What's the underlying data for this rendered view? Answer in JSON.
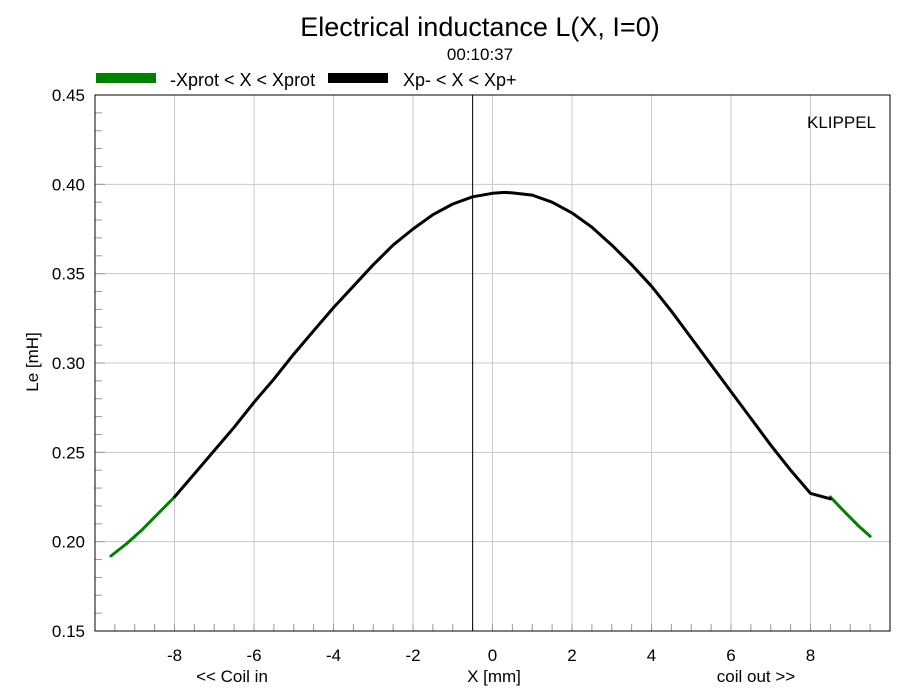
{
  "chart_data": {
    "type": "line",
    "title": "Electrical inductance L(X, I=0)",
    "subtitle": "00:10:37",
    "brand": "KLIPPEL",
    "xlabel": "X [mm]",
    "xlabel_left": "<< Coil in",
    "xlabel_right": "coil out >>",
    "ylabel": "Le [mH]",
    "xlim": [
      -10,
      10
    ],
    "ylim": [
      0.15,
      0.45
    ],
    "xticks": [
      -8,
      -6,
      -4,
      -2,
      0,
      2,
      4,
      6,
      8
    ],
    "xtick_labels": [
      "-8",
      "-6",
      "-4",
      "-2",
      "0",
      "2",
      "4",
      "6",
      "8"
    ],
    "yticks": [
      0.15,
      0.2,
      0.25,
      0.3,
      0.35,
      0.4,
      0.45
    ],
    "ytick_labels": [
      "0.15",
      "0.20",
      "0.25",
      "0.30",
      "0.35",
      "0.40",
      "0.45"
    ],
    "grid": true,
    "legend_position": "top-left",
    "vertical_marker_x": -0.5,
    "colors": {
      "green": "#008000",
      "black": "#000000",
      "grid": "#c8c8c8"
    },
    "series": [
      {
        "name": "-Xprot < X < Xprot",
        "color": "#008000",
        "segments": [
          {
            "x": [
              -9.6,
              -9.2,
              -8.8,
              -8.4,
              -8.0
            ],
            "y": [
              0.192,
              0.199,
              0.207,
              0.216,
              0.225
            ]
          },
          {
            "x": [
              8.5,
              8.8,
              9.2,
              9.5
            ],
            "y": [
              0.225,
              0.218,
              0.209,
              0.203
            ]
          }
        ]
      },
      {
        "name": "Xp- < X < Xp+",
        "color": "#000000",
        "segments": [
          {
            "x": [
              -8.0,
              -7.5,
              -7.0,
              -6.5,
              -6.0,
              -5.5,
              -5.0,
              -4.5,
              -4.0,
              -3.5,
              -3.0,
              -2.5,
              -2.0,
              -1.5,
              -1.0,
              -0.5,
              0.0,
              0.3,
              0.5,
              1.0,
              1.5,
              2.0,
              2.5,
              3.0,
              3.5,
              4.0,
              4.5,
              5.0,
              5.5,
              6.0,
              6.5,
              7.0,
              7.5,
              8.0,
              8.5
            ],
            "y": [
              0.225,
              0.238,
              0.251,
              0.264,
              0.278,
              0.291,
              0.305,
              0.318,
              0.331,
              0.343,
              0.355,
              0.366,
              0.375,
              0.383,
              0.389,
              0.393,
              0.395,
              0.3955,
              0.3952,
              0.394,
              0.39,
              0.384,
              0.376,
              0.366,
              0.355,
              0.343,
              0.329,
              0.314,
              0.299,
              0.284,
              0.269,
              0.254,
              0.24,
              0.227,
              0.224
            ]
          }
        ]
      }
    ]
  }
}
